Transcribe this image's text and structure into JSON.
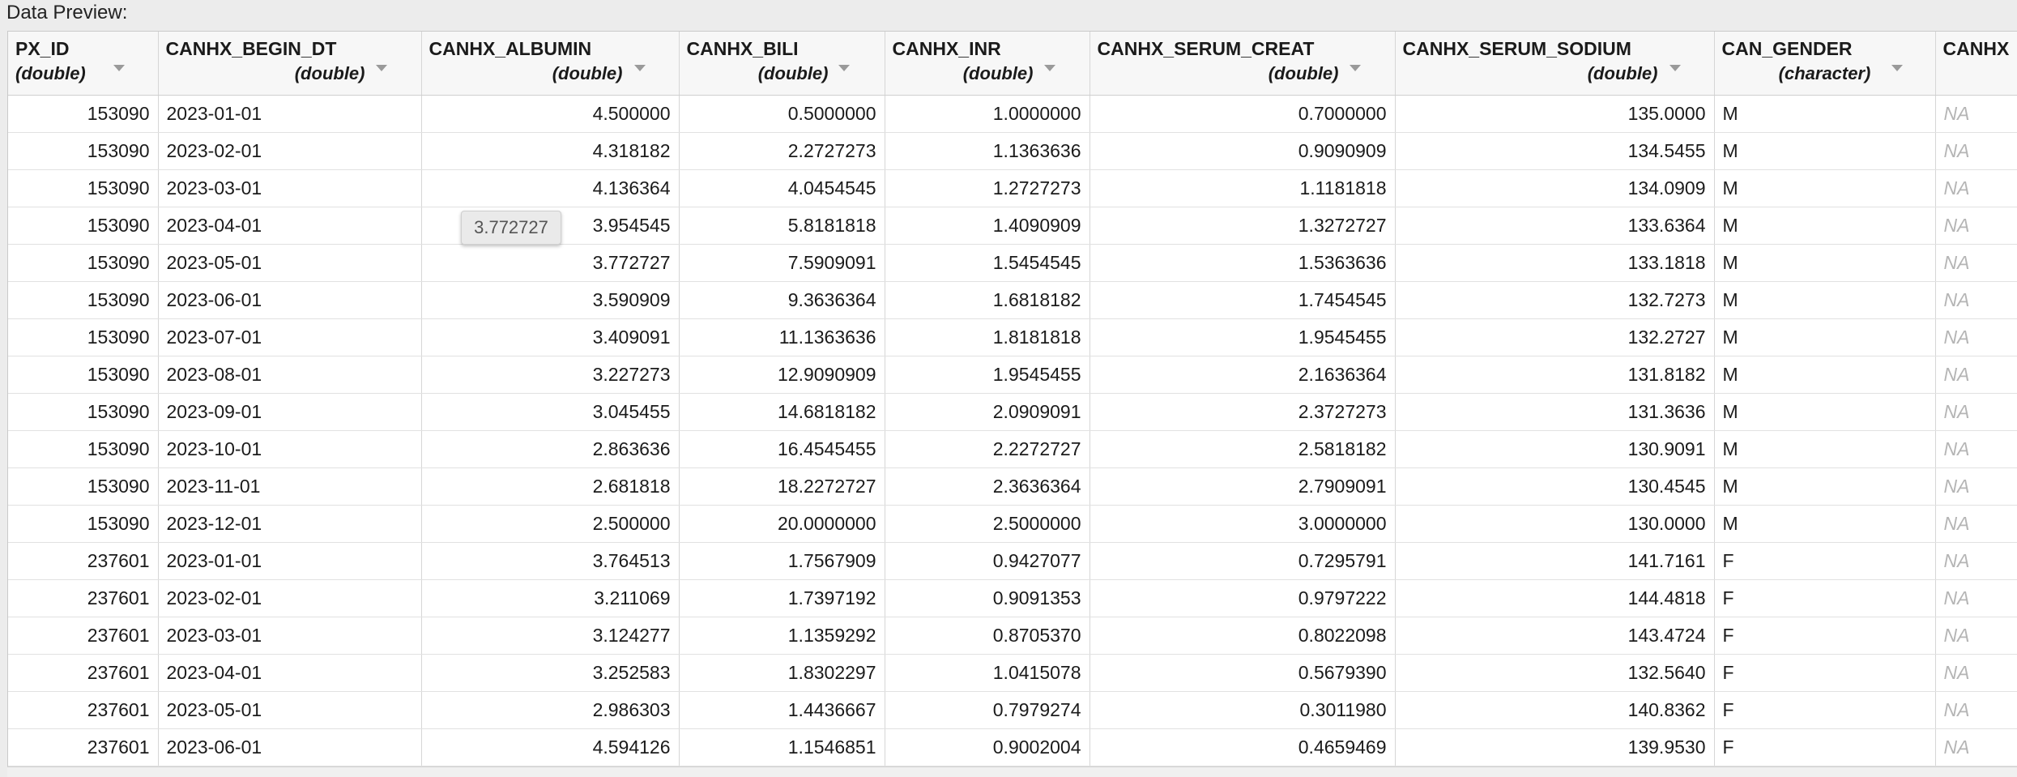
{
  "caption": "Data Preview:",
  "columns": [
    {
      "name": "PX_ID",
      "type": "(double)"
    },
    {
      "name": "CANHX_BEGIN_DT",
      "type": "(double)"
    },
    {
      "name": "CANHX_ALBUMIN",
      "type": "(double)"
    },
    {
      "name": "CANHX_BILI",
      "type": "(double)"
    },
    {
      "name": "CANHX_INR",
      "type": "(double)"
    },
    {
      "name": "CANHX_SERUM_CREAT",
      "type": "(double)"
    },
    {
      "name": "CANHX_SERUM_SODIUM",
      "type": "(double)"
    },
    {
      "name": "CAN_GENDER",
      "type": "(character)"
    },
    {
      "name": "CANHX",
      "type": ""
    }
  ],
  "rows": [
    [
      "153090",
      "2023-01-01",
      "4.500000",
      "0.5000000",
      "1.0000000",
      "0.7000000",
      "135.0000",
      "M",
      "NA"
    ],
    [
      "153090",
      "2023-02-01",
      "4.318182",
      "2.2727273",
      "1.1363636",
      "0.9090909",
      "134.5455",
      "M",
      "NA"
    ],
    [
      "153090",
      "2023-03-01",
      "4.136364",
      "4.0454545",
      "1.2727273",
      "1.1181818",
      "134.0909",
      "M",
      "NA"
    ],
    [
      "153090",
      "2023-04-01",
      "3.954545",
      "5.8181818",
      "1.4090909",
      "1.3272727",
      "133.6364",
      "M",
      "NA"
    ],
    [
      "153090",
      "2023-05-01",
      "3.772727",
      "7.5909091",
      "1.5454545",
      "1.5363636",
      "133.1818",
      "M",
      "NA"
    ],
    [
      "153090",
      "2023-06-01",
      "3.590909",
      "9.3636364",
      "1.6818182",
      "1.7454545",
      "132.7273",
      "M",
      "NA"
    ],
    [
      "153090",
      "2023-07-01",
      "3.409091",
      "11.1363636",
      "1.8181818",
      "1.9545455",
      "132.2727",
      "M",
      "NA"
    ],
    [
      "153090",
      "2023-08-01",
      "3.227273",
      "12.9090909",
      "1.9545455",
      "2.1636364",
      "131.8182",
      "M",
      "NA"
    ],
    [
      "153090",
      "2023-09-01",
      "3.045455",
      "14.6818182",
      "2.0909091",
      "2.3727273",
      "131.3636",
      "M",
      "NA"
    ],
    [
      "153090",
      "2023-10-01",
      "2.863636",
      "16.4545455",
      "2.2272727",
      "2.5818182",
      "130.9091",
      "M",
      "NA"
    ],
    [
      "153090",
      "2023-11-01",
      "2.681818",
      "18.2272727",
      "2.3636364",
      "2.7909091",
      "130.4545",
      "M",
      "NA"
    ],
    [
      "153090",
      "2023-12-01",
      "2.500000",
      "20.0000000",
      "2.5000000",
      "3.0000000",
      "130.0000",
      "M",
      "NA"
    ],
    [
      "237601",
      "2023-01-01",
      "3.764513",
      "1.7567909",
      "0.9427077",
      "0.7295791",
      "141.7161",
      "F",
      "NA"
    ],
    [
      "237601",
      "2023-02-01",
      "3.211069",
      "1.7397192",
      "0.9091353",
      "0.9797222",
      "144.4818",
      "F",
      "NA"
    ],
    [
      "237601",
      "2023-03-01",
      "3.124277",
      "1.1359292",
      "0.8705370",
      "0.8022098",
      "143.4724",
      "F",
      "NA"
    ],
    [
      "237601",
      "2023-04-01",
      "3.252583",
      "1.8302297",
      "1.0415078",
      "0.5679390",
      "132.5640",
      "F",
      "NA"
    ],
    [
      "237601",
      "2023-05-01",
      "2.986303",
      "1.4436667",
      "0.7979274",
      "0.3011980",
      "140.8362",
      "F",
      "NA"
    ],
    [
      "237601",
      "2023-06-01",
      "4.594126",
      "1.1546851",
      "0.9002004",
      "0.4659469",
      "139.9530",
      "F",
      "NA"
    ]
  ],
  "tooltip": "3.772727"
}
